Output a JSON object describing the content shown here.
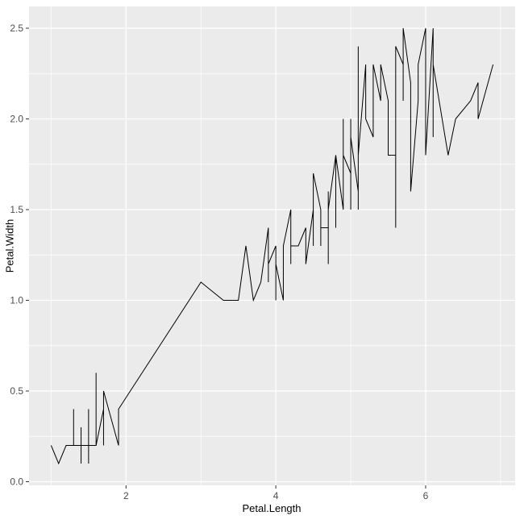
{
  "figure": {
    "background": "#FFFFFF"
  },
  "chart_data": {
    "type": "line",
    "title": "",
    "xlabel": "Petal.Length",
    "ylabel": "Petal.Width",
    "x_tick_values": [
      2,
      4,
      6
    ],
    "x_tick_labels": [
      "2",
      "4",
      "6"
    ],
    "y_tick_values": [
      0,
      0.5,
      1,
      1.5,
      2,
      2.5
    ],
    "y_tick_labels": [
      "0.0",
      "0.5",
      "1.0",
      "1.5",
      "2.0",
      "2.5"
    ],
    "x_minor_gridlines": [
      1,
      3,
      5,
      7
    ],
    "y_minor_gridlines": [
      0.25,
      0.75,
      1.25,
      1.75,
      2.25
    ],
    "xlim": [
      0.705,
      7.195
    ],
    "ylim": [
      -0.02,
      2.62
    ],
    "grid": true,
    "legend": "none",
    "sort_points_by_x": true,
    "colors": {
      "panel_background": "#EBEBEB",
      "grid_major": "#FFFFFF",
      "grid_minor": "#FFFFFF",
      "line": "#000000",
      "tick_mark": "#333333",
      "tick_label": "#4D4D4D",
      "axis_title": "#000000"
    },
    "points": [
      [
        1.4,
        0.2
      ],
      [
        1.4,
        0.2
      ],
      [
        1.3,
        0.2
      ],
      [
        1.5,
        0.2
      ],
      [
        1.4,
        0.2
      ],
      [
        1.7,
        0.4
      ],
      [
        1.4,
        0.3
      ],
      [
        1.5,
        0.2
      ],
      [
        1.4,
        0.2
      ],
      [
        1.5,
        0.1
      ],
      [
        1.5,
        0.2
      ],
      [
        1.6,
        0.2
      ],
      [
        1.4,
        0.1
      ],
      [
        1.1,
        0.1
      ],
      [
        1.2,
        0.2
      ],
      [
        1.5,
        0.4
      ],
      [
        1.3,
        0.4
      ],
      [
        1.4,
        0.3
      ],
      [
        1.7,
        0.3
      ],
      [
        1.5,
        0.3
      ],
      [
        1.7,
        0.2
      ],
      [
        1.5,
        0.4
      ],
      [
        1.0,
        0.2
      ],
      [
        1.7,
        0.5
      ],
      [
        1.9,
        0.2
      ],
      [
        1.6,
        0.2
      ],
      [
        1.6,
        0.4
      ],
      [
        1.5,
        0.2
      ],
      [
        1.4,
        0.2
      ],
      [
        1.6,
        0.2
      ],
      [
        1.6,
        0.2
      ],
      [
        1.5,
        0.4
      ],
      [
        1.5,
        0.1
      ],
      [
        1.4,
        0.2
      ],
      [
        1.5,
        0.2
      ],
      [
        1.2,
        0.2
      ],
      [
        1.3,
        0.2
      ],
      [
        1.4,
        0.1
      ],
      [
        1.3,
        0.2
      ],
      [
        1.5,
        0.2
      ],
      [
        1.3,
        0.3
      ],
      [
        1.3,
        0.3
      ],
      [
        1.3,
        0.2
      ],
      [
        1.6,
        0.6
      ],
      [
        1.9,
        0.4
      ],
      [
        1.4,
        0.3
      ],
      [
        1.6,
        0.2
      ],
      [
        1.4,
        0.2
      ],
      [
        1.5,
        0.2
      ],
      [
        1.4,
        0.2
      ],
      [
        4.7,
        1.4
      ],
      [
        4.5,
        1.5
      ],
      [
        4.9,
        1.5
      ],
      [
        4.0,
        1.3
      ],
      [
        4.6,
        1.5
      ],
      [
        4.5,
        1.3
      ],
      [
        4.7,
        1.6
      ],
      [
        3.3,
        1.0
      ],
      [
        4.6,
        1.3
      ],
      [
        3.9,
        1.4
      ],
      [
        3.5,
        1.0
      ],
      [
        4.2,
        1.5
      ],
      [
        4.0,
        1.0
      ],
      [
        4.7,
        1.4
      ],
      [
        3.6,
        1.3
      ],
      [
        4.4,
        1.4
      ],
      [
        4.5,
        1.5
      ],
      [
        4.1,
        1.0
      ],
      [
        4.5,
        1.5
      ],
      [
        3.9,
        1.1
      ],
      [
        4.8,
        1.8
      ],
      [
        4.0,
        1.3
      ],
      [
        4.9,
        1.5
      ],
      [
        4.7,
        1.2
      ],
      [
        4.3,
        1.3
      ],
      [
        4.4,
        1.4
      ],
      [
        4.8,
        1.4
      ],
      [
        5.0,
        1.7
      ],
      [
        4.5,
        1.5
      ],
      [
        3.5,
        1.0
      ],
      [
        3.8,
        1.1
      ],
      [
        3.7,
        1.0
      ],
      [
        3.9,
        1.2
      ],
      [
        5.1,
        1.6
      ],
      [
        4.5,
        1.5
      ],
      [
        4.5,
        1.6
      ],
      [
        4.7,
        1.5
      ],
      [
        4.4,
        1.3
      ],
      [
        4.1,
        1.3
      ],
      [
        4.0,
        1.3
      ],
      [
        4.4,
        1.2
      ],
      [
        4.6,
        1.4
      ],
      [
        4.0,
        1.2
      ],
      [
        3.3,
        1.0
      ],
      [
        4.2,
        1.3
      ],
      [
        4.2,
        1.2
      ],
      [
        4.2,
        1.3
      ],
      [
        4.3,
        1.3
      ],
      [
        3.0,
        1.1
      ],
      [
        4.1,
        1.3
      ],
      [
        6.0,
        2.5
      ],
      [
        5.1,
        1.9
      ],
      [
        5.9,
        2.1
      ],
      [
        5.6,
        1.8
      ],
      [
        5.8,
        2.2
      ],
      [
        6.6,
        2.1
      ],
      [
        4.5,
        1.7
      ],
      [
        6.3,
        1.8
      ],
      [
        5.8,
        1.8
      ],
      [
        6.1,
        2.5
      ],
      [
        5.1,
        2.0
      ],
      [
        5.3,
        1.9
      ],
      [
        5.5,
        2.1
      ],
      [
        5.0,
        2.0
      ],
      [
        5.1,
        2.4
      ],
      [
        5.3,
        2.3
      ],
      [
        5.5,
        1.8
      ],
      [
        6.7,
        2.2
      ],
      [
        6.9,
        2.3
      ],
      [
        5.0,
        1.5
      ],
      [
        5.7,
        2.3
      ],
      [
        4.9,
        2.0
      ],
      [
        6.7,
        2.0
      ],
      [
        4.9,
        1.8
      ],
      [
        5.7,
        2.1
      ],
      [
        6.0,
        1.8
      ],
      [
        4.8,
        1.8
      ],
      [
        4.9,
        1.8
      ],
      [
        5.6,
        2.1
      ],
      [
        5.8,
        1.6
      ],
      [
        6.1,
        1.9
      ],
      [
        6.4,
        2.0
      ],
      [
        5.6,
        2.2
      ],
      [
        5.1,
        1.5
      ],
      [
        5.6,
        1.4
      ],
      [
        6.1,
        2.3
      ],
      [
        5.6,
        2.4
      ],
      [
        5.5,
        1.8
      ],
      [
        4.8,
        1.8
      ],
      [
        5.4,
        2.1
      ],
      [
        5.6,
        2.4
      ],
      [
        5.1,
        2.3
      ],
      [
        5.1,
        1.9
      ],
      [
        5.9,
        2.3
      ],
      [
        5.7,
        2.5
      ],
      [
        5.2,
        2.3
      ],
      [
        5.0,
        1.9
      ],
      [
        5.2,
        2.0
      ],
      [
        5.4,
        2.3
      ],
      [
        5.1,
        1.8
      ]
    ]
  }
}
